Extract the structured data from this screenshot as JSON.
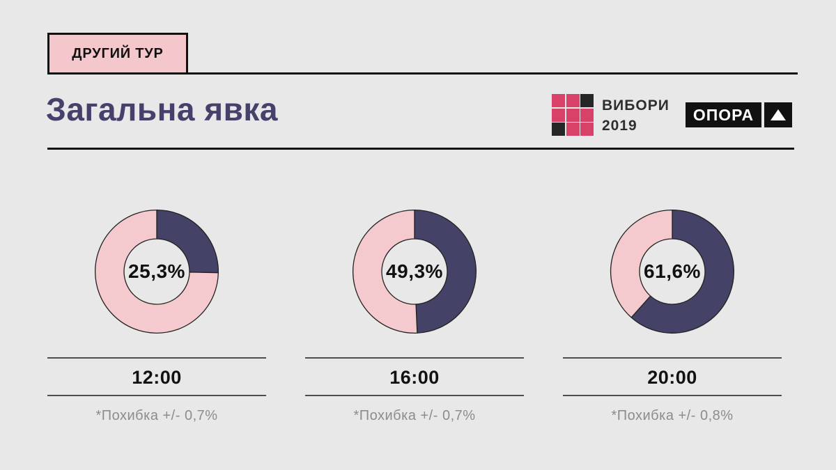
{
  "header": {
    "badge_label": "ДРУГИЙ ТУР",
    "badge_bg": "#f3c7cc",
    "title": "Загальна явка",
    "title_color": "#45416b"
  },
  "logos": {
    "vybory": {
      "line1": "ВИБОРИ",
      "line2": "2019",
      "grid_pattern": [
        "pink",
        "pink",
        "black",
        "pink",
        "pink",
        "pink",
        "black",
        "pink",
        "pink"
      ],
      "colors": {
        "pink": "#d84168",
        "black": "#262626"
      }
    },
    "opora": {
      "label": "ОПОРА",
      "icon": "triangle-up-icon"
    }
  },
  "chart_data": {
    "type": "pie",
    "subtype": "donut",
    "title": "Загальна явка",
    "start_angle_deg": 0,
    "direction": "clockwise",
    "colors": {
      "filled": "#454268",
      "remainder": "#f4cacf",
      "outline": "#222222"
    },
    "series": [
      {
        "time": "12:00",
        "value": 25.3,
        "center_label": "25,3%",
        "note": "*Похибка +/- 0,7%"
      },
      {
        "time": "16:00",
        "value": 49.3,
        "center_label": "49,3%",
        "note": "*Похибка +/- 0,7%"
      },
      {
        "time": "20:00",
        "value": 61.6,
        "center_label": "61,6%",
        "note": "*Похибка +/- 0,8%"
      }
    ]
  }
}
